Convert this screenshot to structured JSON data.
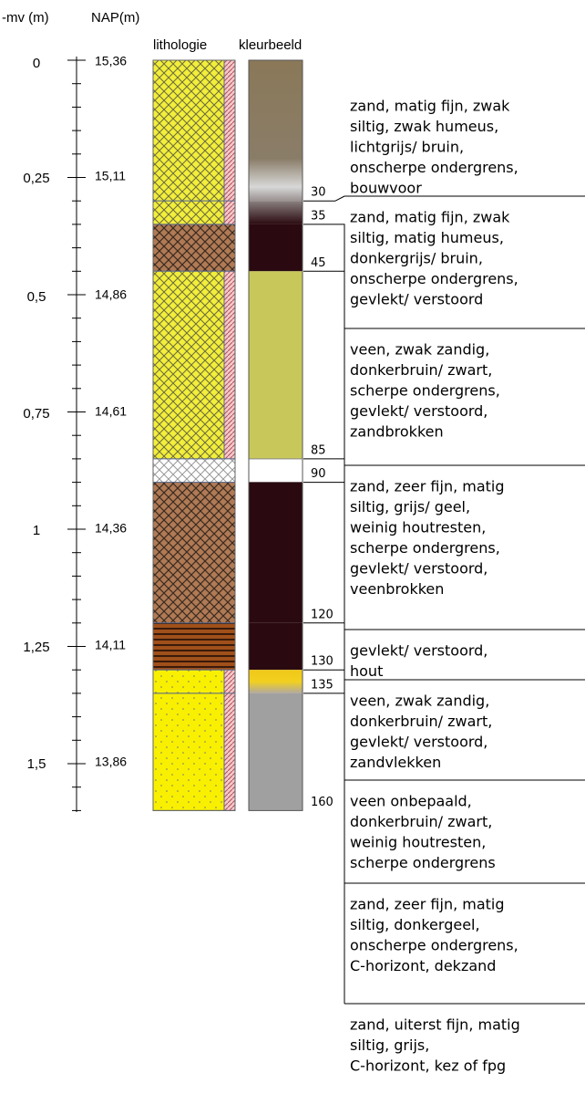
{
  "headers": {
    "depth": "-mv (m)",
    "nap": "NAP(m)",
    "lithology": "lithologie",
    "color": "kleurbeeld"
  },
  "depth_scale": [
    {
      "depth": "0",
      "nap": "15,36"
    },
    {
      "depth": "0,25",
      "nap": "15,11"
    },
    {
      "depth": "0,5",
      "nap": "14,86"
    },
    {
      "depth": "0,75",
      "nap": "14,61"
    },
    {
      "depth": "1",
      "nap": "14,36"
    },
    {
      "depth": "1,25",
      "nap": "14,11"
    },
    {
      "depth": "1,5",
      "nap": "13,86"
    }
  ],
  "boundaries": [
    "30",
    "35",
    "45",
    "85",
    "90",
    "120",
    "130",
    "135",
    "160"
  ],
  "descriptions": [
    [
      "zand, matig fijn, zwak",
      "siltig, zwak humeus,",
      "lichtgrijs/ bruin,",
      "onscherpe ondergrens,",
      "bouwvoor"
    ],
    [
      "zand, matig fijn, zwak",
      "siltig, matig humeus,",
      "donkergrijs/ bruin,",
      "onscherpe ondergrens,",
      "gevlekt/ verstoord"
    ],
    [
      "veen, zwak zandig,",
      "donkerbruin/ zwart,",
      "scherpe ondergrens,",
      "gevlekt/ verstoord,",
      "zandbrokken"
    ],
    [
      "zand, zeer fijn, matig",
      "siltig, grijs/ geel,",
      "weinig houtresten,",
      "scherpe ondergrens,",
      "gevlekt/ verstoord,",
      "veenbrokken"
    ],
    [
      "  gevlekt/ verstoord,",
      "hout"
    ],
    [
      "veen, zwak zandig,",
      "donkerbruin/ zwart,",
      "gevlekt/ verstoord,",
      "zandvlekken"
    ],
    [
      "veen onbepaald,",
      "donkerbruin/ zwart,",
      "weinig houtresten,",
      "scherpe ondergrens"
    ],
    [
      "zand, zeer fijn, matig",
      "siltig, donkergeel,",
      "onscherpe ondergrens,",
      "C-horizont, dekzand"
    ],
    [
      "zand, uiterst fijn, matig",
      "siltig, grijs,",
      "C-horizont, kez of fpg"
    ]
  ]
}
